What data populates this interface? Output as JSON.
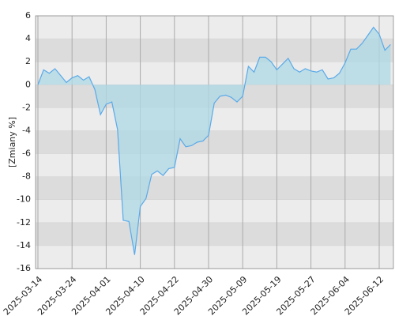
{
  "chart_data": {
    "type": "area",
    "y_label": "[Zmiany %]",
    "categories": [
      "2025-03-14",
      null,
      null,
      null,
      null,
      null,
      "2025-03-24",
      null,
      null,
      null,
      null,
      null,
      "2025-04-01",
      null,
      null,
      null,
      null,
      null,
      "2025-04-10",
      null,
      null,
      null,
      null,
      null,
      "2025-04-22",
      null,
      null,
      null,
      null,
      null,
      "2025-04-30",
      null,
      null,
      null,
      null,
      null,
      "2025-05-09",
      null,
      null,
      null,
      null,
      null,
      "2025-05-19",
      null,
      null,
      null,
      null,
      null,
      "2025-05-27",
      null,
      null,
      null,
      null,
      null,
      "2025-06-04",
      null,
      null,
      null,
      null,
      null,
      "2025-06-12",
      null,
      null
    ],
    "values": [
      0,
      1.3,
      1.0,
      1.4,
      0.8,
      0.2,
      0.6,
      0.8,
      0.4,
      0.7,
      -0.4,
      -2.6,
      -1.7,
      -1.5,
      -3.9,
      -11.8,
      -11.9,
      -14.8,
      -10.6,
      -9.9,
      -7.8,
      -7.5,
      -7.9,
      -7.3,
      -7.2,
      -4.7,
      -5.4,
      -5.3,
      -5.0,
      -4.9,
      -4.4,
      -1.6,
      -1.0,
      -0.9,
      -1.1,
      -1.5,
      -1.0,
      1.6,
      1.1,
      2.4,
      2.4,
      2.0,
      1.3,
      1.8,
      2.3,
      1.4,
      1.1,
      1.4,
      1.2,
      1.1,
      1.3,
      0.5,
      0.6,
      1.0,
      1.9,
      3.1,
      3.1,
      3.6,
      4.3,
      5.0,
      4.4,
      3.0,
      3.5
    ],
    "color": "#5aaae8",
    "fill_color": "#add8e6",
    "ylim": [
      -16,
      6
    ],
    "yticks": [
      -16,
      -14,
      -12,
      -10,
      -8,
      -6,
      -4,
      -2,
      0,
      2,
      4,
      6
    ],
    "grid": true
  }
}
